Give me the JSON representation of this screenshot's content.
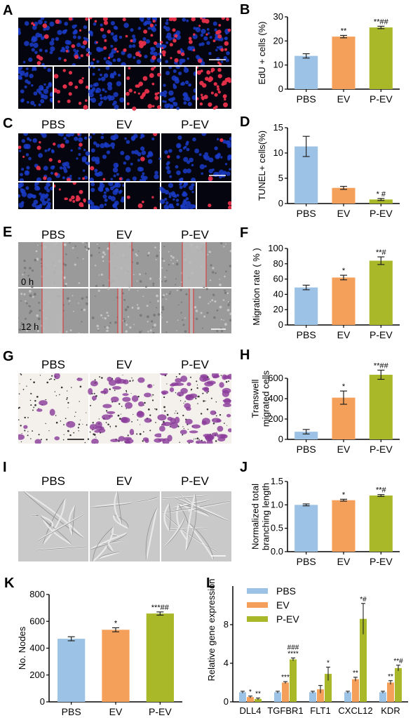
{
  "figure": {
    "panels": {
      "A": {
        "letter": "A",
        "conditions": [
          "PBS",
          "EV",
          "P-EV"
        ]
      },
      "C": {
        "letter": "C",
        "conditions": [
          "PBS",
          "EV",
          "P-EV"
        ]
      },
      "E": {
        "letter": "E",
        "conditions": [
          "PBS",
          "EV",
          "P-EV"
        ],
        "times": [
          "0 h",
          "12 h"
        ]
      },
      "G": {
        "letter": "G",
        "conditions": [
          "PBS",
          "EV",
          "P-EV"
        ]
      },
      "I": {
        "letter": "I",
        "conditions": [
          "PBS",
          "EV",
          "P-EV"
        ]
      }
    },
    "colors": {
      "PBS": "#9cc3e6",
      "EV": "#f5a05a",
      "P-EV": "#a9b829",
      "blue_nuclei": "#1a3cc8",
      "red_stain": "#e8304a",
      "purple_stain": "#8a3a9a"
    }
  },
  "chart_data": [
    {
      "id": "B",
      "letter": "B",
      "type": "bar",
      "categories": [
        "PBS",
        "EV",
        "P-EV"
      ],
      "values": [
        13.8,
        21.8,
        25.6
      ],
      "errors": [
        0.9,
        0.5,
        0.5
      ],
      "ylabel": "EdU + cells (%)",
      "ylim": [
        0,
        30
      ],
      "yticks": [
        0,
        10,
        20,
        30
      ],
      "annotations": [
        "",
        "**",
        "**##"
      ]
    },
    {
      "id": "D",
      "letter": "D",
      "type": "bar",
      "categories": [
        "PBS",
        "EV",
        "P-EV"
      ],
      "values": [
        11.3,
        3.1,
        0.8
      ],
      "errors": [
        2.0,
        0.3,
        0.2
      ],
      "ylabel": "TUNEL+ cells(%)",
      "ylim": [
        0,
        15
      ],
      "yticks": [
        0,
        5,
        10,
        15
      ],
      "annotations": [
        "",
        "",
        "* #"
      ]
    },
    {
      "id": "F",
      "letter": "F",
      "type": "bar",
      "categories": [
        "PBS",
        "EV",
        "P-EV"
      ],
      "values": [
        49,
        62,
        84
      ],
      "errors": [
        3,
        3,
        5
      ],
      "ylabel": "Migration rate ( % )",
      "ylim": [
        0,
        100
      ],
      "yticks": [
        0,
        20,
        40,
        60,
        80,
        100
      ],
      "annotations": [
        "",
        "*",
        "**#"
      ]
    },
    {
      "id": "H",
      "letter": "H",
      "type": "bar",
      "categories": [
        "PBS",
        "EV",
        "P-EV"
      ],
      "values": [
        75,
        410,
        635
      ],
      "errors": [
        22,
        65,
        45
      ],
      "ylabel": "Transwell migrated cells",
      "ylabel_lines": [
        "Transwell",
        "migrated cells"
      ],
      "ylim": [
        0,
        800
      ],
      "yticks": [
        0,
        200,
        400,
        600
      ],
      "annotations": [
        "",
        "*",
        "**##"
      ]
    },
    {
      "id": "J",
      "letter": "J",
      "type": "bar",
      "categories": [
        "PBS",
        "EV",
        "P-EV"
      ],
      "values": [
        1.0,
        1.1,
        1.2
      ],
      "errors": [
        0.02,
        0.02,
        0.02
      ],
      "ylabel": "Normalized total branching length",
      "ylabel_lines": [
        "Normalized total",
        "branching length"
      ],
      "ylim": [
        0,
        1.5
      ],
      "yticks": [
        0,
        0.5,
        1.0,
        1.5
      ],
      "ytick_labels": [
        "0.0",
        "0.5",
        "1.0",
        "1.5"
      ],
      "annotations": [
        "",
        "*",
        "**#"
      ]
    },
    {
      "id": "K",
      "letter": "K",
      "type": "bar",
      "categories": [
        "PBS",
        "EV",
        "P-EV"
      ],
      "values": [
        470,
        537,
        658
      ],
      "errors": [
        15,
        15,
        12
      ],
      "ylabel": "No. Nodes",
      "ylim": [
        0,
        800
      ],
      "yticks": [
        0,
        200,
        400,
        600,
        800
      ],
      "annotations": [
        "",
        "*",
        "***##"
      ]
    },
    {
      "id": "L",
      "letter": "L",
      "type": "bar",
      "categories": [
        "DLL4",
        "TGFBR1",
        "FLT1",
        "CXCL12",
        "KDR"
      ],
      "series": [
        {
          "name": "PBS",
          "values": [
            1.0,
            1.0,
            1.0,
            1.0,
            1.0
          ],
          "errors": [
            0.1,
            0.1,
            0.1,
            0.1,
            0.1
          ]
        },
        {
          "name": "EV",
          "values": [
            0.5,
            2.0,
            1.3,
            2.35,
            2.0
          ],
          "errors": [
            0.1,
            0.1,
            0.4,
            0.2,
            0.2
          ]
        },
        {
          "name": "P-EV",
          "values": [
            0.3,
            4.4,
            2.9,
            8.6,
            3.5
          ],
          "errors": [
            0.1,
            0.15,
            0.7,
            1.6,
            0.3
          ]
        }
      ],
      "ylabel": "Relative gene expression",
      "ylim": [
        0,
        12
      ],
      "yticks": [
        0,
        4,
        8
      ],
      "annotations": [
        [
          "",
          "*",
          "**"
        ],
        [
          "",
          "***",
          "###\n****"
        ],
        [
          "",
          "",
          "*"
        ],
        [
          "",
          "**",
          "*#"
        ],
        [
          "",
          "**",
          "**#"
        ]
      ]
    }
  ]
}
